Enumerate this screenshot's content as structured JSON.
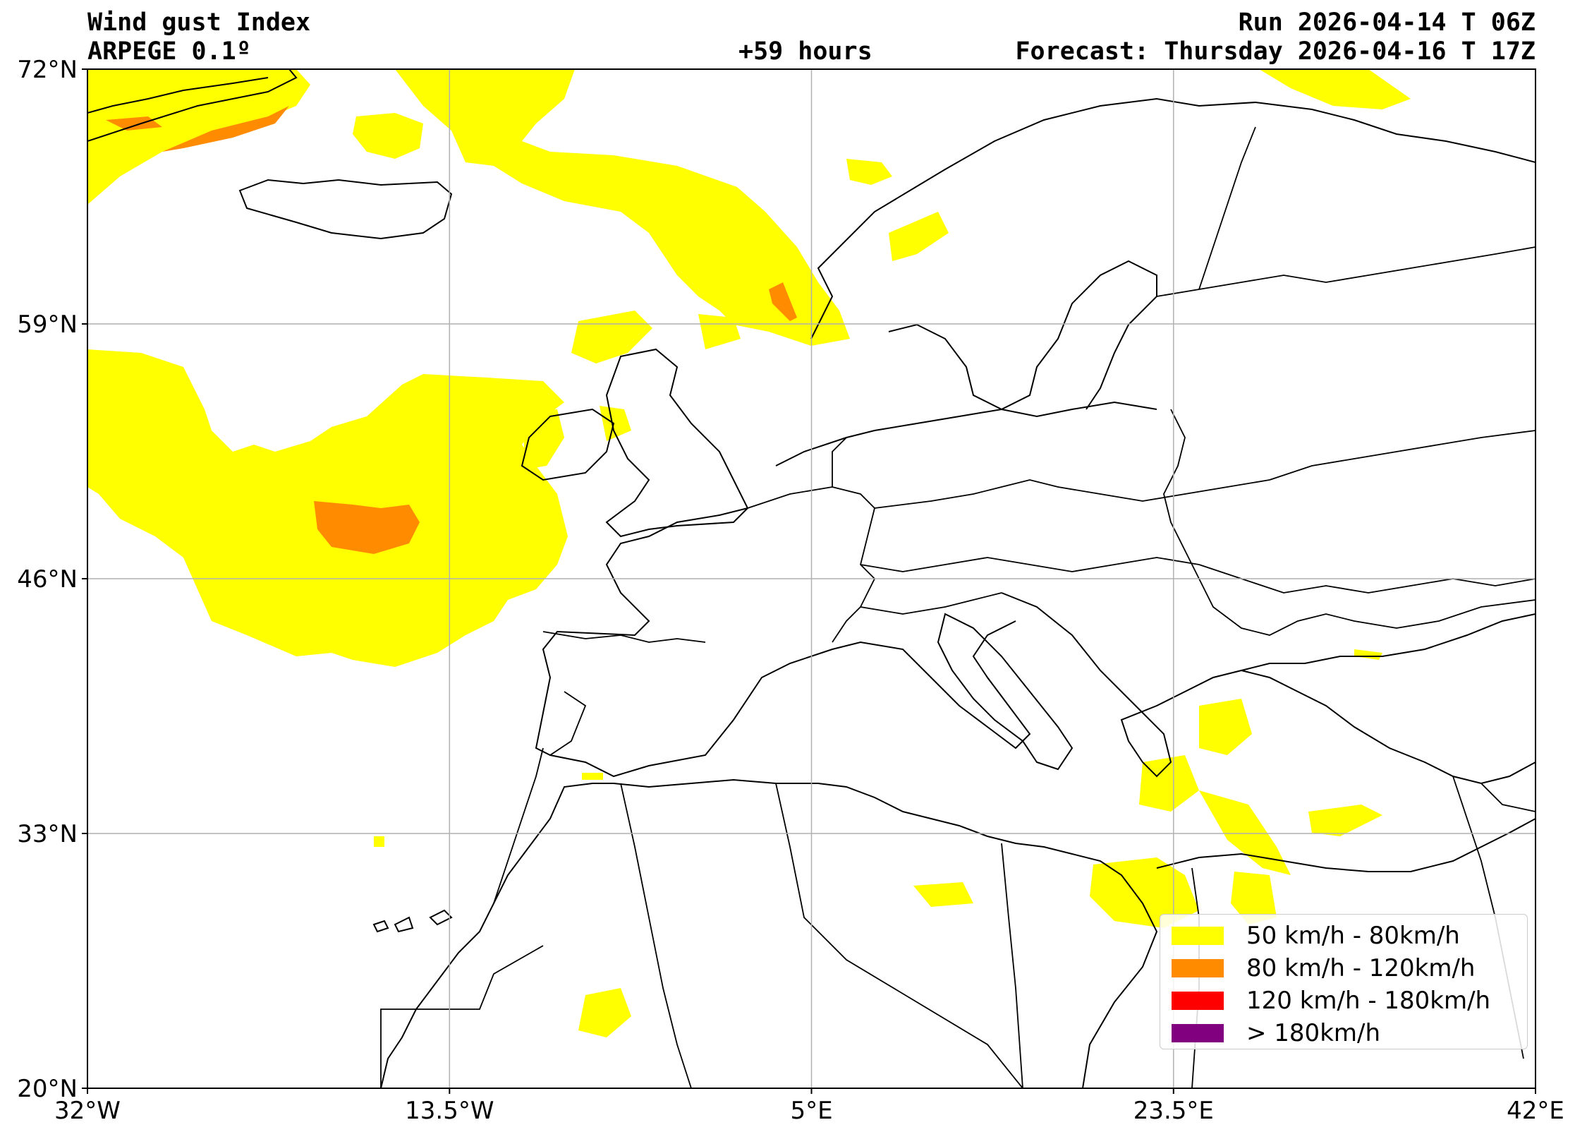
{
  "header": {
    "title": "Wind gust Index",
    "model": "ARPEGE 0.1º",
    "run": "Run 2026-04-14 T 06Z",
    "lead": "+59 hours",
    "forecast": "Forecast: Thursday 2026-04-16 T 17Z"
  },
  "map": {
    "lon_range": [
      -32,
      42
    ],
    "lat_range": [
      20,
      72
    ],
    "x_ticks": [
      "32°W",
      "13.5°W",
      "5°E",
      "23.5°E",
      "42°E"
    ],
    "y_ticks": [
      "72°N",
      "59°N",
      "46°N",
      "33°N",
      "20°N"
    ],
    "grid": true
  },
  "legend": {
    "items": [
      {
        "label": "50 km/h - 80km/h",
        "color": "#ffff00"
      },
      {
        "label": "80 km/h - 120km/h",
        "color": "#ff8c00"
      },
      {
        "label": "120 km/h - 180km/h",
        "color": "#ff0000"
      },
      {
        "label": "> 180km/h",
        "color": "#800080"
      }
    ]
  },
  "colors": {
    "yellow": "#ffff00",
    "orange": "#ff8c00",
    "coast": "#000000",
    "grid": "#b0b0b0"
  }
}
